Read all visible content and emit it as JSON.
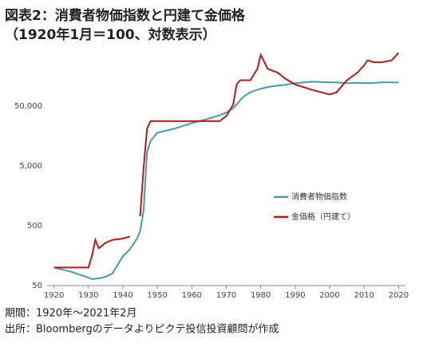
{
  "chart_data": {
    "type": "line",
    "title": "図表2：消費者物価指数と円建て金価格",
    "subtitle": "（1920年1月＝100、対数表示）",
    "notes": [
      "期間：1920年～2021年2月",
      "出所：Bloombergのデータよりピクテ投信投資顧問が作成"
    ],
    "log_scale": true,
    "grid": false,
    "legend": "right",
    "x": [
      1920,
      1925,
      1930,
      1931,
      1932,
      1933,
      1935,
      1937,
      1940,
      1942,
      1944,
      1945,
      1946,
      1947,
      1948,
      1950,
      1955,
      1960,
      1965,
      1968,
      1970,
      1972,
      1973,
      1974,
      1975,
      1977,
      1979,
      1980,
      1982,
      1985,
      1987,
      1990,
      1995,
      2000,
      2002,
      2005,
      2008,
      2010,
      2011,
      2013,
      2015,
      2018,
      2020
    ],
    "series": [
      {
        "name": "消費者物価指数",
        "color": "#4a9aa5",
        "values": [
          100,
          85,
          68,
          64,
          65,
          66,
          70,
          80,
          155,
          200,
          300,
          400,
          900,
          8400,
          13000,
          18000,
          21000,
          26000,
          31000,
          35000,
          39000,
          46000,
          53000,
          62000,
          72000,
          85000,
          94000,
          97000,
          104000,
          110000,
          113000,
          121000,
          128000,
          125000,
          124000,
          121000,
          122000,
          121000,
          121000,
          122000,
          125000,
          125000,
          125000
        ]
      },
      {
        "name": "金価格（円建て）",
        "color": "#b01c1c",
        "values": [
          100,
          100,
          100,
          155,
          290,
          210,
          260,
          290,
          305,
          330,
          null,
          720,
          4600,
          21000,
          28000,
          28000,
          28000,
          28000,
          28000,
          28000,
          34000,
          53000,
          115000,
          135000,
          135000,
          135000,
          210000,
          360000,
          210000,
          180000,
          145000,
          115000,
          93000,
          78000,
          85000,
          135000,
          180000,
          240000,
          290000,
          270000,
          270000,
          290000,
          390000
        ]
      }
    ],
    "xlim": [
      1918,
      2022
    ],
    "xticks": [
      1920,
      1930,
      1940,
      1950,
      1960,
      1970,
      1980,
      1990,
      2000,
      2010,
      2020
    ],
    "ylim": [
      50,
      500000
    ],
    "yticks": [
      50,
      500,
      {
        "value": 5000,
        "label": "5,000"
      },
      {
        "value": 50000,
        "label": "50,000"
      }
    ]
  }
}
